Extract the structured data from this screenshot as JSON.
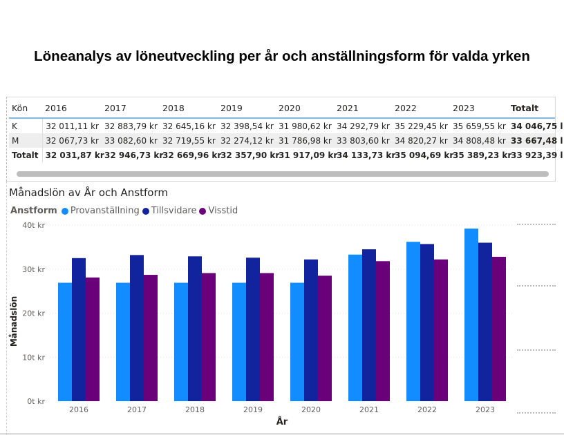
{
  "page": {
    "title": "Löneanalys av löneutveckling per år och anställningsform för valda yrken"
  },
  "matrix": {
    "row_header": "Kön",
    "columns": [
      "2016",
      "2017",
      "2018",
      "2019",
      "2020",
      "2021",
      "2022",
      "2023"
    ],
    "total_label": "Totalt",
    "rows": [
      {
        "label": "K",
        "values": [
          "32 011,11 kr",
          "32 883,79 kr",
          "32 645,16 kr",
          "32 398,54 kr",
          "31 980,62 kr",
          "34 292,79 kr",
          "35 229,45 kr",
          "35 659,55 kr"
        ],
        "total": "34 046,75 l"
      },
      {
        "label": "M",
        "values": [
          "32 067,73 kr",
          "33 082,60 kr",
          "32 719,55 kr",
          "32 274,12 kr",
          "31 786,98 kr",
          "33 803,60 kr",
          "34 820,27 kr",
          "34 808,48 kr"
        ],
        "total": "33 667,48 l"
      },
      {
        "label": "Totalt",
        "values": [
          "32 031,87 kr",
          "32 946,73 kr",
          "32 669,96 kr",
          "32 357,90 kr",
          "31 917,09 kr",
          "34 133,73 kr",
          "35 094,69 kr",
          "35 389,23 kr"
        ],
        "total": "33 923,39 l"
      }
    ]
  },
  "chart_data": {
    "type": "bar",
    "title": "Månadslön av År och Anstform",
    "legend_title": "Anstform",
    "legend_position": "top-left",
    "xlabel": "År",
    "ylabel": "Månadslön",
    "categories": [
      "2016",
      "2017",
      "2018",
      "2019",
      "2020",
      "2021",
      "2022",
      "2023"
    ],
    "ylim": [
      0,
      40000
    ],
    "yticks": [
      0,
      10000,
      20000,
      30000,
      40000
    ],
    "ytick_labels": [
      "0t kr",
      "10t kr",
      "20t kr",
      "30t kr",
      "40t kr"
    ],
    "grid": true,
    "series": [
      {
        "name": "Provanställning",
        "color": "#118dff",
        "values": [
          26900,
          26900,
          26900,
          26900,
          26900,
          33300,
          36200,
          39200
        ]
      },
      {
        "name": "Tillsvidare",
        "color": "#12239e",
        "values": [
          32500,
          33200,
          32900,
          32600,
          32200,
          34500,
          35700,
          36000
        ]
      },
      {
        "name": "Visstid",
        "color": "#6b007b",
        "values": [
          28100,
          28700,
          29100,
          29100,
          28500,
          31800,
          32200,
          32800
        ]
      }
    ]
  }
}
